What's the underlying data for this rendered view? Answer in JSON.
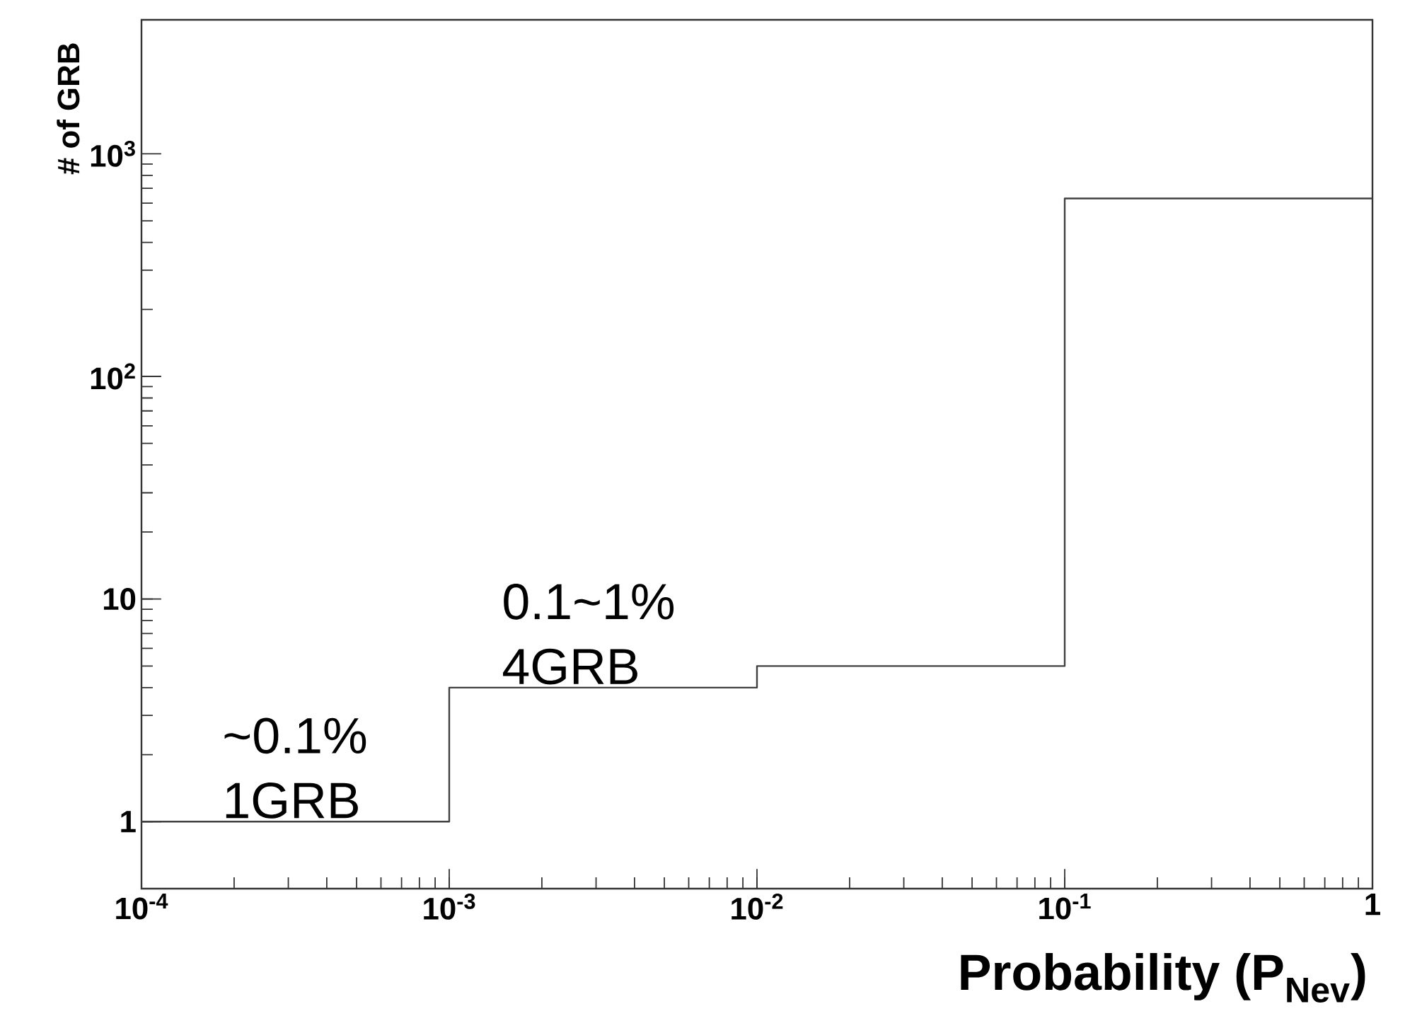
{
  "chart_data": {
    "type": "histogram",
    "xlabel": "**Probability (P$_{Nev}$)**",
    "ylabel": "# of GRB",
    "bins": [
      0.0001,
      0.001,
      0.01,
      0.1,
      1
    ],
    "values": [
      1,
      4,
      5,
      630
    ],
    "color": "#404040",
    "log": "xy",
    "xlim": [
      0.0001,
      1
    ],
    "ylim": [
      0.5,
      4000
    ],
    "xticks": [
      {
        "value": 0.0001,
        "label": "10$^{-4}$"
      },
      {
        "value": 0.001,
        "label": "10$^{-3}$"
      },
      {
        "value": 0.01,
        "label": "10$^{-2}$"
      },
      {
        "value": 0.1,
        "label": "10$^{-1}$"
      },
      1
    ],
    "yticks": [
      1,
      10,
      {
        "value": 100,
        "label": "10$^{2}$"
      },
      {
        "value": 1000,
        "label": "10$^{3}$"
      }
    ],
    "annotations": [
      "~0.1%",
      "1GRB",
      "0.1~1%",
      "4GRB"
    ]
  }
}
